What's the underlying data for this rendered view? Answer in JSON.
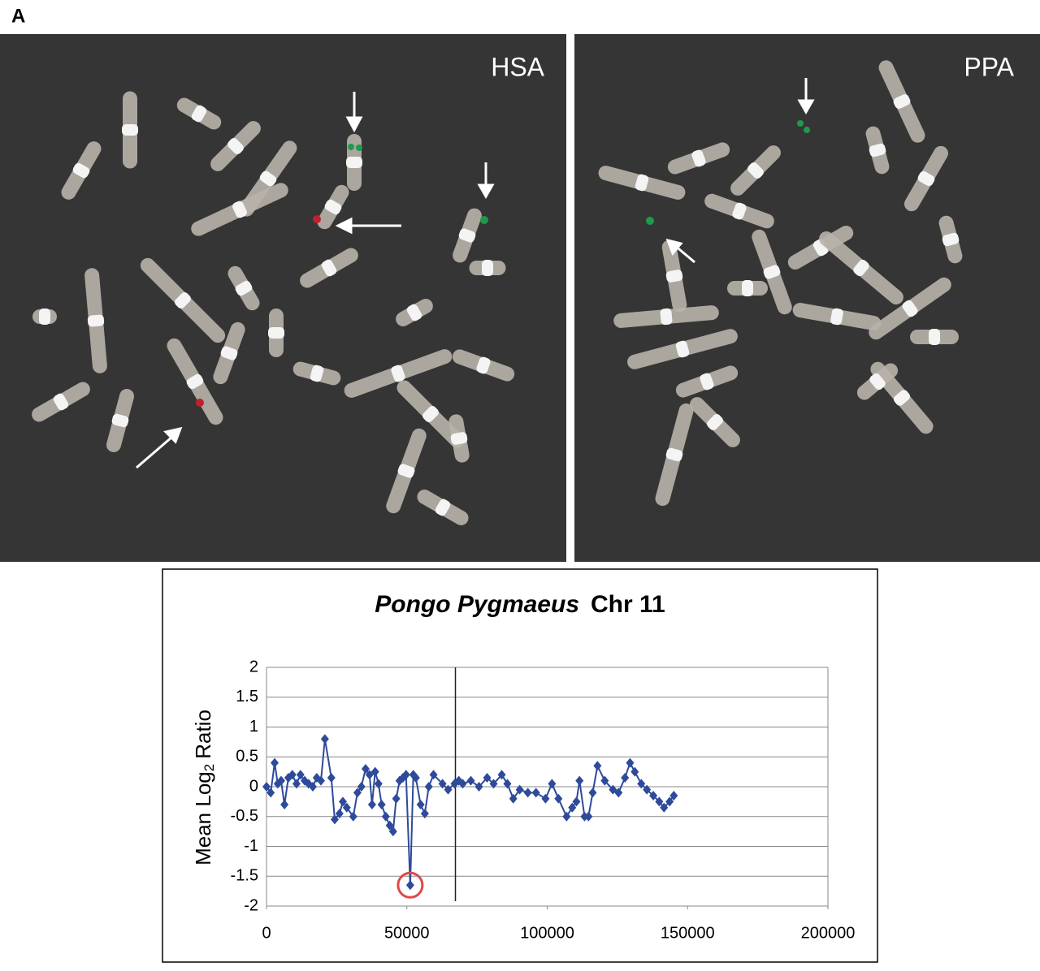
{
  "figure_label": "A",
  "panels": [
    {
      "label": "HSA"
    },
    {
      "label": "PPA"
    }
  ],
  "chart_data": {
    "type": "line",
    "title_italic": "Pongo Pygmaeus",
    "title": "Chr 11",
    "ylabel": {
      "text": "Mean Log",
      "sub": "2",
      "rest": "Ratio"
    },
    "xlim": [
      0,
      200000
    ],
    "xticks": [
      0,
      50000,
      100000,
      150000,
      200000
    ],
    "ylim": [
      -2,
      2
    ],
    "yticks": [
      -2,
      -1.5,
      -1,
      -0.5,
      0,
      0.5,
      1,
      1.5,
      2
    ],
    "grid": true,
    "vline_x": 67300,
    "highlight_index": 37,
    "series": [
      {
        "color": "#2e4a9a",
        "x": [
          0,
          1500,
          2900,
          4000,
          5200,
          6400,
          7800,
          9200,
          10700,
          12100,
          13600,
          15000,
          16500,
          17900,
          19400,
          20800,
          23100,
          24300,
          26000,
          27200,
          28600,
          30900,
          32400,
          33800,
          35300,
          36700,
          37600,
          38700,
          39900,
          41000,
          42500,
          43900,
          45100,
          46200,
          47400,
          48600,
          49700,
          51200,
          52300,
          53200,
          54900,
          56400,
          57800,
          59500,
          62700,
          64700,
          67000,
          68500,
          69900,
          72800,
          75700,
          78600,
          80900,
          83800,
          85800,
          87900,
          90200,
          93100,
          96000,
          99400,
          101700,
          104000,
          106900,
          108900,
          110400,
          111500,
          113300,
          114700,
          116200,
          117900,
          120500,
          123400,
          125400,
          127700,
          129500,
          131200,
          133500,
          135500,
          137800,
          139900,
          141600,
          143600,
          145100
        ],
        "values": [
          0,
          -0.1,
          0.4,
          0.05,
          0.1,
          -0.3,
          0.15,
          0.2,
          0.05,
          0.2,
          0.1,
          0.05,
          0,
          0.15,
          0.1,
          0.8,
          0.15,
          -0.55,
          -0.45,
          -0.25,
          -0.35,
          -0.5,
          -0.1,
          0,
          0.3,
          0.2,
          -0.3,
          0.25,
          0.05,
          -0.3,
          -0.5,
          -0.65,
          -0.75,
          -0.2,
          0.1,
          0.15,
          0.2,
          -1.65,
          0.2,
          0.15,
          -0.3,
          -0.45,
          0,
          0.2,
          0.05,
          -0.05,
          0.05,
          0.1,
          0.05,
          0.1,
          0,
          0.15,
          0.05,
          0.2,
          0.05,
          -0.2,
          -0.05,
          -0.1,
          -0.1,
          -0.2,
          0.05,
          -0.2,
          -0.5,
          -0.35,
          -0.25,
          0.1,
          -0.5,
          -0.5,
          -0.1,
          0.35,
          0.1,
          -0.05,
          -0.1,
          0.15,
          0.4,
          0.25,
          0.05,
          -0.05,
          -0.15,
          -0.25,
          -0.35,
          -0.25,
          -0.15
        ]
      }
    ]
  }
}
